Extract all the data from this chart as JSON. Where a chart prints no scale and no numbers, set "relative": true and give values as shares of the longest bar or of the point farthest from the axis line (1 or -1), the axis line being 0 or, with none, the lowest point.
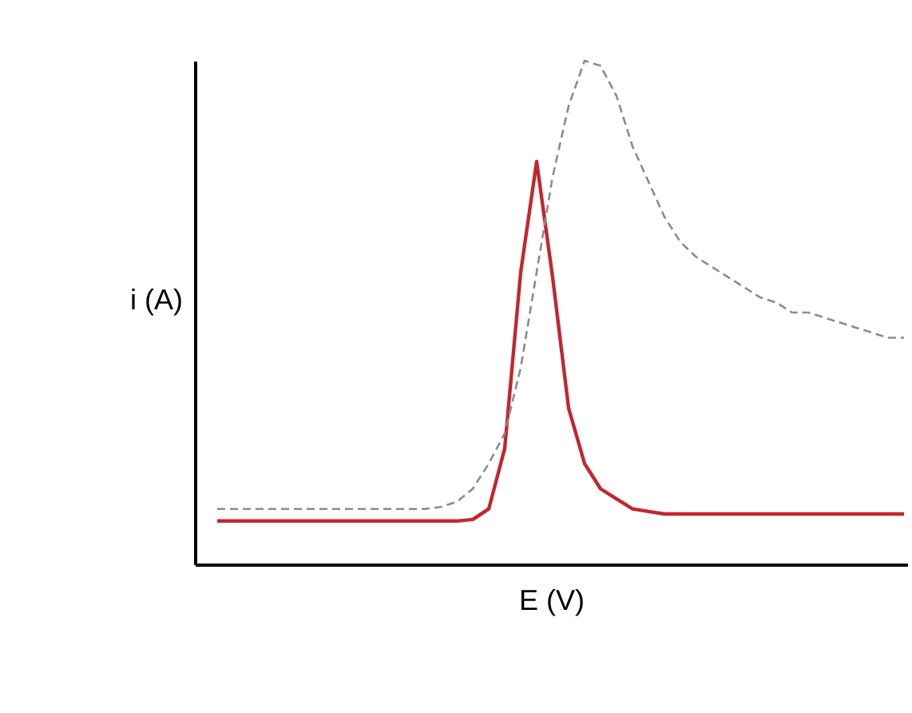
{
  "chart_data": {
    "type": "line",
    "relative": true,
    "xlabel": "E (V)",
    "ylabel": "i (A)",
    "grid": false,
    "marker": "none",
    "categories": [
      null,
      null,
      null,
      null,
      null,
      null,
      null,
      null,
      null,
      null,
      null,
      null,
      null,
      null,
      null,
      null,
      null,
      null,
      null,
      null,
      null,
      null,
      null,
      null,
      null,
      null,
      null,
      null,
      null,
      null,
      null,
      null,
      null,
      null,
      null,
      null,
      null,
      null,
      null,
      null,
      null,
      null,
      null,
      null
    ],
    "series": [
      {
        "color": "#c0282d",
        "line_style": "solid",
        "values": [
          0.086,
          0.086,
          0.086,
          0.086,
          0.086,
          0.086,
          0.086,
          0.086,
          0.086,
          0.086,
          0.086,
          0.086,
          0.086,
          0.086,
          0.086,
          0.086,
          0.089,
          0.11,
          0.23,
          0.58,
          0.8,
          0.57,
          0.31,
          0.2,
          0.15,
          0.13,
          0.11,
          0.105,
          0.1,
          0.1,
          0.1,
          0.1,
          0.1,
          0.1,
          0.1,
          0.1,
          0.1,
          0.1,
          0.1,
          0.1,
          0.1,
          0.1,
          0.1,
          0.1
        ]
      },
      {
        "color": "#8c8c8c",
        "line_style": "dashed",
        "values": [
          0.11,
          0.11,
          0.11,
          0.11,
          0.11,
          0.11,
          0.11,
          0.11,
          0.11,
          0.11,
          0.11,
          0.11,
          0.11,
          0.11,
          0.114,
          0.124,
          0.15,
          0.2,
          0.26,
          0.39,
          0.58,
          0.77,
          0.91,
          1.0,
          0.99,
          0.93,
          0.83,
          0.76,
          0.69,
          0.64,
          0.61,
          0.59,
          0.57,
          0.55,
          0.53,
          0.52,
          0.5,
          0.5,
          0.49,
          0.48,
          0.47,
          0.46,
          0.45,
          0.45
        ]
      }
    ]
  }
}
